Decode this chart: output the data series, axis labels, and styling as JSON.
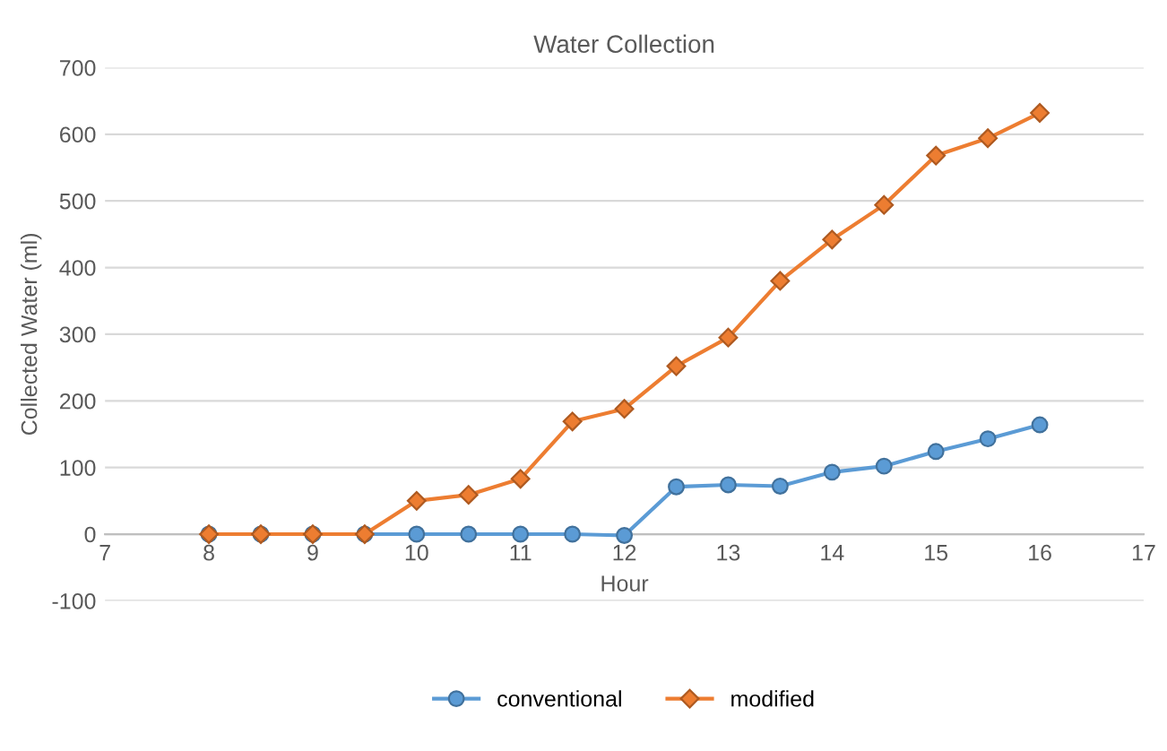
{
  "chart_data": {
    "type": "line",
    "title": "Water Collection",
    "xlabel": "Hour",
    "ylabel": "Collected Water (ml)",
    "x": [
      8,
      8.5,
      9,
      9.5,
      10,
      10.5,
      11,
      11.5,
      12,
      12.5,
      13,
      13.5,
      14,
      14.5,
      15,
      15.5,
      16
    ],
    "series": [
      {
        "name": "conventional",
        "color": "#5b9bd5",
        "marker": "circle",
        "values": [
          0,
          0,
          0,
          0,
          0,
          0,
          0,
          0,
          -2,
          71,
          74,
          72,
          93,
          102,
          124,
          143,
          164
        ]
      },
      {
        "name": "modified",
        "color": "#ed7d31",
        "marker": "diamond",
        "values": [
          0,
          0,
          0,
          0,
          50,
          59,
          83,
          169,
          188,
          252,
          295,
          380,
          442,
          494,
          568,
          594,
          632
        ]
      }
    ],
    "xlim": [
      7,
      17
    ],
    "xticks": [
      7,
      8,
      9,
      10,
      11,
      12,
      13,
      14,
      15,
      16,
      17
    ],
    "ylim": [
      -100,
      700
    ],
    "yticks": [
      -100,
      0,
      100,
      200,
      300,
      400,
      500,
      600,
      700
    ],
    "grid": "y",
    "legend": "bottom",
    "line_style": "solid"
  }
}
